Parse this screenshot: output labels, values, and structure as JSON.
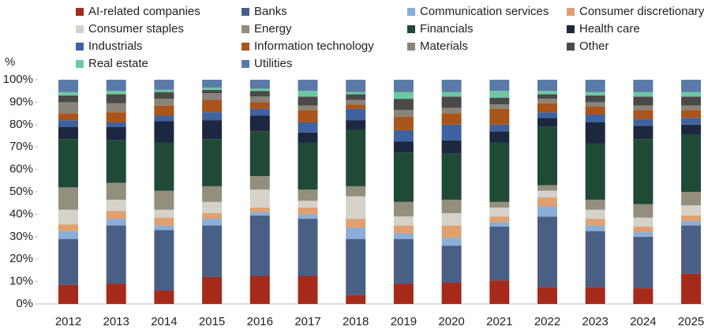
{
  "chart_data": {
    "type": "stacked_bar",
    "ylabel": "%",
    "categories": [
      "2012",
      "2013",
      "2014",
      "2015",
      "2016",
      "2017",
      "2018",
      "2019",
      "2020",
      "2021",
      "2022",
      "2023",
      "2024",
      "2025"
    ],
    "ylim": [
      0,
      100
    ],
    "yticks": [
      {
        "value": 0,
        "label": "0%"
      },
      {
        "value": 10,
        "label": "10%"
      },
      {
        "value": 20,
        "label": "20%"
      },
      {
        "value": 30,
        "label": "30%"
      },
      {
        "value": 40,
        "label": "40%"
      },
      {
        "value": 50,
        "label": "50%"
      },
      {
        "value": 60,
        "label": "60%"
      },
      {
        "value": 70,
        "label": "70%"
      },
      {
        "value": 80,
        "label": "80%"
      },
      {
        "value": 90,
        "label": "90%"
      },
      {
        "value": 100,
        "label": "100%"
      }
    ],
    "series": [
      {
        "name": "AI-related companies",
        "color": "#a52a1a",
        "values": [
          8.5,
          9,
          6,
          12,
          12.5,
          12.5,
          4,
          9,
          9.5,
          10.5,
          7.5,
          7.5,
          7,
          13.5
        ]
      },
      {
        "name": "Banks",
        "color": "#4a5f85",
        "values": [
          20.5,
          26,
          27,
          23,
          27,
          25.5,
          25,
          20,
          16.5,
          24,
          31.5,
          25,
          23,
          21.5
        ]
      },
      {
        "name": "Communication services",
        "color": "#8aaed8",
        "values": [
          3.5,
          3,
          2,
          3,
          1.5,
          2,
          5,
          2.5,
          3.5,
          2,
          4.5,
          2.5,
          2,
          2
        ]
      },
      {
        "name": "Consumer discretionary",
        "color": "#e0a070",
        "values": [
          3,
          3.5,
          3.5,
          2.5,
          2,
          3,
          4,
          3.5,
          5.5,
          2.5,
          4,
          3,
          2.5,
          2.5
        ]
      },
      {
        "name": "Consumer staples",
        "color": "#d6d2ca",
        "values": [
          6.5,
          5,
          3.5,
          5,
          8,
          3,
          10,
          4,
          5.5,
          4,
          3,
          4,
          4,
          4.5
        ]
      },
      {
        "name": "Energy",
        "color": "#948e7c",
        "values": [
          10,
          7.5,
          8.5,
          7,
          6,
          5,
          4.5,
          6.5,
          6,
          2.5,
          2.5,
          4.5,
          6,
          6
        ]
      },
      {
        "name": "Financials",
        "color": "#1f4a35",
        "values": [
          21.5,
          19,
          21.5,
          21,
          20,
          21,
          25,
          22,
          20.5,
          26.5,
          26,
          25,
          29,
          25.5
        ]
      },
      {
        "name": "Health care",
        "color": "#1c2840",
        "values": [
          5.5,
          6,
          9.5,
          8.5,
          7,
          4.5,
          4.5,
          5,
          6,
          5,
          4,
          9.5,
          6,
          4.5
        ]
      },
      {
        "name": "Industrials",
        "color": "#3f62a0",
        "values": [
          3,
          2,
          2.5,
          3.5,
          3,
          4.5,
          5,
          5,
          7,
          3,
          2.5,
          3.5,
          3,
          3
        ]
      },
      {
        "name": "Information technology",
        "color": "#a8541a",
        "values": [
          3,
          4.5,
          4.5,
          5.5,
          3,
          5.5,
          2,
          6,
          5,
          7,
          4,
          3.5,
          4,
          3.5
        ]
      },
      {
        "name": "Materials",
        "color": "#8a8478",
        "values": [
          5,
          4,
          3,
          3,
          2.5,
          2,
          2,
          3,
          2.5,
          2,
          2,
          2,
          2,
          2
        ]
      },
      {
        "name": "Other",
        "color": "#4a4a48",
        "values": [
          3,
          4,
          3,
          1.5,
          2.5,
          4,
          2.5,
          5,
          5,
          3,
          2,
          3,
          4,
          4
        ]
      },
      {
        "name": "Real estate",
        "color": "#6cc8a0",
        "values": [
          1.5,
          1.5,
          1,
          1,
          1,
          2.5,
          1,
          3,
          2,
          3,
          1.5,
          1.5,
          2,
          2
        ]
      },
      {
        "name": "Utilities",
        "color": "#5a7aa8",
        "values": [
          5.5,
          5,
          4.5,
          3.5,
          4,
          5,
          5.5,
          5.5,
          5.5,
          5,
          5,
          5.5,
          5.5,
          5.5
        ]
      }
    ]
  }
}
